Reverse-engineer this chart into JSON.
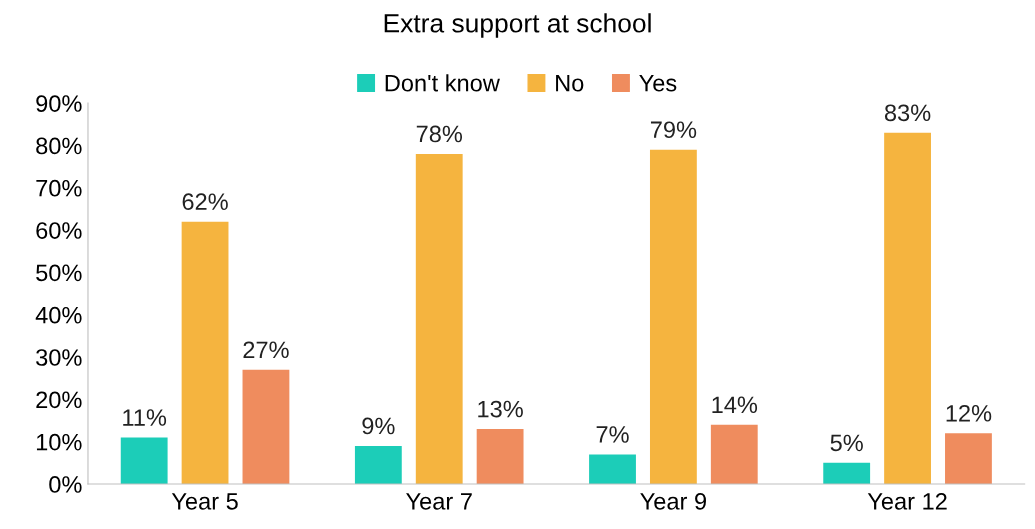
{
  "chart_data": {
    "type": "bar",
    "title": "Extra support at school",
    "categories": [
      "Year 5",
      "Year 7",
      "Year 9",
      "Year 12"
    ],
    "series": [
      {
        "name": "Don't know",
        "color": "#1ccdb8",
        "values": [
          11,
          9,
          7,
          5
        ],
        "value_labels": [
          "11%",
          "9%",
          "7%",
          "5%"
        ]
      },
      {
        "name": "No",
        "color": "#f5b43f",
        "values": [
          62,
          78,
          79,
          83
        ],
        "value_labels": [
          "62%",
          "78%",
          "79%",
          "83%"
        ]
      },
      {
        "name": "Yes",
        "color": "#ef8c5e",
        "values": [
          27,
          13,
          14,
          12
        ],
        "value_labels": [
          "27%",
          "13%",
          "14%",
          "12%"
        ]
      }
    ],
    "ylim": [
      0,
      90
    ],
    "yticks": [
      {
        "value": 0,
        "label": "0%"
      },
      {
        "value": 10,
        "label": "10%"
      },
      {
        "value": 20,
        "label": "20%"
      },
      {
        "value": 30,
        "label": "30%"
      },
      {
        "value": 40,
        "label": "40%"
      },
      {
        "value": 50,
        "label": "50%"
      },
      {
        "value": 60,
        "label": "60%"
      },
      {
        "value": 70,
        "label": "70%"
      },
      {
        "value": 80,
        "label": "80%"
      },
      {
        "value": 90,
        "label": "90%"
      }
    ],
    "grid": false,
    "legend": "top"
  }
}
